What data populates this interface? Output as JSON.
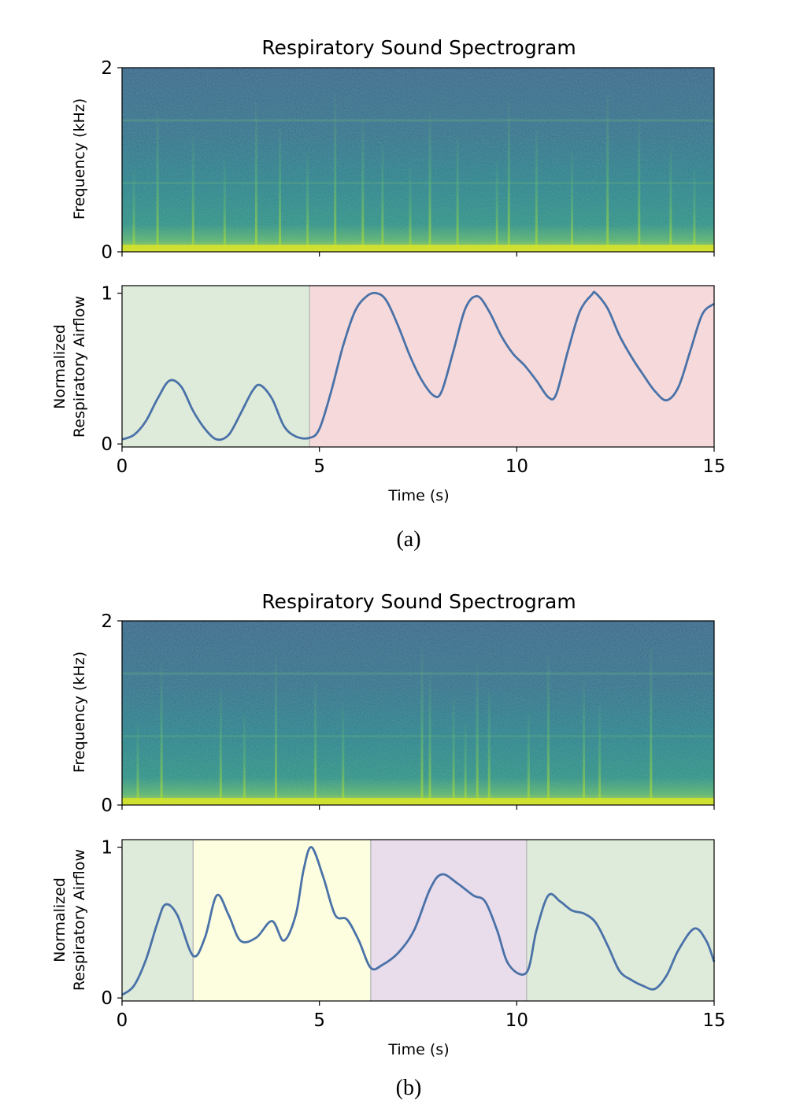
{
  "figure": {
    "panels": [
      {
        "caption": "(a)",
        "spectrogram": {
          "title": "Respiratory Sound Spectrogram",
          "ylabel": "Frequency (kHz)",
          "yticks": [
            "0",
            "2"
          ],
          "xlim": [
            0,
            15
          ],
          "ylim": [
            0,
            2
          ],
          "colormap": "viridis",
          "vertical_streaks": [
            0.3,
            0.9,
            1.8,
            2.6,
            3.4,
            4.0,
            4.7,
            5.4,
            6.1,
            6.6,
            7.3,
            7.8,
            8.5,
            9.5,
            9.8,
            10.5,
            11.4,
            12.3,
            13.1,
            13.9,
            14.5
          ]
        },
        "airflow": {
          "ylabel_line1": "Normalized",
          "ylabel_line2": "Respiratory Airflow",
          "yticks": [
            "0",
            "1"
          ],
          "xticks": [
            "0",
            "5",
            "10",
            "15"
          ],
          "xlabel": "Time (s)",
          "xlim": [
            0,
            15
          ],
          "ylim": [
            -0.02,
            1.05
          ],
          "line_color": "#4a72a8",
          "regions": [
            {
              "x0": 0,
              "x1": 4.75,
              "color": "#dfebda"
            },
            {
              "x0": 4.75,
              "x1": 15,
              "color": "#f6dadb"
            }
          ]
        }
      },
      {
        "caption": "(b)",
        "spectrogram": {
          "title": "Respiratory Sound Spectrogram",
          "ylabel": "Frequency (kHz)",
          "yticks": [
            "0",
            "2"
          ],
          "xlim": [
            0,
            15
          ],
          "ylim": [
            0,
            2
          ],
          "colormap": "viridis",
          "vertical_streaks": [
            0.4,
            1.0,
            2.5,
            3.1,
            3.9,
            4.9,
            5.6,
            7.6,
            7.8,
            8.4,
            8.7,
            9.0,
            9.3,
            10.3,
            10.8,
            11.7,
            12.1,
            13.4
          ]
        },
        "airflow": {
          "ylabel_line1": "Normalized",
          "ylabel_line2": "Respiratory Airflow",
          "yticks": [
            "0",
            "1"
          ],
          "xticks": [
            "0",
            "5",
            "10",
            "15"
          ],
          "xlabel": "Time (s)",
          "xlim": [
            0,
            15
          ],
          "ylim": [
            -0.02,
            1.05
          ],
          "line_color": "#4a72a8",
          "regions": [
            {
              "x0": 0,
              "x1": 1.8,
              "color": "#dfebda"
            },
            {
              "x0": 1.8,
              "x1": 6.3,
              "color": "#fcfedf"
            },
            {
              "x0": 6.3,
              "x1": 10.25,
              "color": "#e9dceb"
            },
            {
              "x0": 10.25,
              "x1": 15,
              "color": "#dfebda"
            }
          ]
        }
      }
    ]
  },
  "chart_data": [
    {
      "type": "heatmap",
      "title": "Respiratory Sound Spectrogram",
      "xlabel": "",
      "ylabel": "Frequency (kHz)",
      "xlim": [
        0,
        15
      ],
      "ylim": [
        0,
        2
      ]
    },
    {
      "type": "line",
      "xlabel": "Time (s)",
      "ylabel": "Normalized Respiratory Airflow",
      "xlim": [
        0,
        15
      ],
      "ylim": [
        0,
        1
      ],
      "series": [
        {
          "x": [
            0,
            0.3,
            0.6,
            0.9,
            1.2,
            1.5,
            1.8,
            2.1,
            2.4,
            2.7,
            3.0,
            3.3,
            3.5,
            3.8,
            4.1,
            4.4,
            4.75,
            5.0,
            5.3,
            5.6,
            5.9,
            6.2,
            6.45,
            6.7,
            7.0,
            7.3,
            7.6,
            7.9,
            8.1,
            8.4,
            8.7,
            9.0,
            9.3,
            9.6,
            9.9,
            10.2,
            10.5,
            10.8,
            11.0,
            11.3,
            11.6,
            11.9,
            12.0,
            12.3,
            12.6,
            12.9,
            13.2,
            13.5,
            13.8,
            14.1,
            14.4,
            14.7,
            15.0
          ],
          "y": [
            0.03,
            0.06,
            0.15,
            0.3,
            0.42,
            0.38,
            0.22,
            0.1,
            0.03,
            0.06,
            0.2,
            0.35,
            0.39,
            0.3,
            0.12,
            0.05,
            0.04,
            0.1,
            0.35,
            0.65,
            0.88,
            0.98,
            1.0,
            0.95,
            0.78,
            0.58,
            0.42,
            0.32,
            0.35,
            0.62,
            0.9,
            0.98,
            0.88,
            0.72,
            0.6,
            0.52,
            0.42,
            0.31,
            0.33,
            0.62,
            0.88,
            0.99,
            1.0,
            0.9,
            0.72,
            0.58,
            0.46,
            0.35,
            0.29,
            0.38,
            0.62,
            0.86,
            0.93
          ]
        }
      ]
    },
    {
      "type": "heatmap",
      "title": "Respiratory Sound Spectrogram",
      "xlabel": "",
      "ylabel": "Frequency (kHz)",
      "xlim": [
        0,
        15
      ],
      "ylim": [
        0,
        2
      ]
    },
    {
      "type": "line",
      "xlabel": "Time (s)",
      "ylabel": "Normalized Respiratory Airflow",
      "xlim": [
        0,
        15
      ],
      "ylim": [
        0,
        1
      ],
      "series": [
        {
          "x": [
            0,
            0.3,
            0.6,
            0.9,
            1.1,
            1.4,
            1.8,
            2.1,
            2.4,
            2.7,
            3.0,
            3.4,
            3.8,
            4.1,
            4.4,
            4.6,
            4.8,
            5.1,
            5.4,
            5.7,
            6.0,
            6.3,
            6.6,
            7.0,
            7.4,
            7.8,
            8.1,
            8.5,
            8.9,
            9.2,
            9.5,
            9.8,
            10.25,
            10.5,
            10.8,
            11.1,
            11.4,
            11.7,
            12.0,
            12.3,
            12.6,
            12.9,
            13.2,
            13.5,
            13.8,
            14.1,
            14.5,
            14.8,
            15.0
          ],
          "y": [
            0.02,
            0.08,
            0.25,
            0.5,
            0.62,
            0.55,
            0.28,
            0.4,
            0.68,
            0.55,
            0.38,
            0.4,
            0.51,
            0.38,
            0.55,
            0.85,
            1.0,
            0.8,
            0.55,
            0.52,
            0.38,
            0.2,
            0.22,
            0.3,
            0.45,
            0.72,
            0.82,
            0.76,
            0.68,
            0.64,
            0.45,
            0.22,
            0.17,
            0.45,
            0.68,
            0.64,
            0.58,
            0.56,
            0.5,
            0.35,
            0.18,
            0.12,
            0.08,
            0.06,
            0.15,
            0.32,
            0.46,
            0.38,
            0.24
          ]
        }
      ]
    }
  ]
}
